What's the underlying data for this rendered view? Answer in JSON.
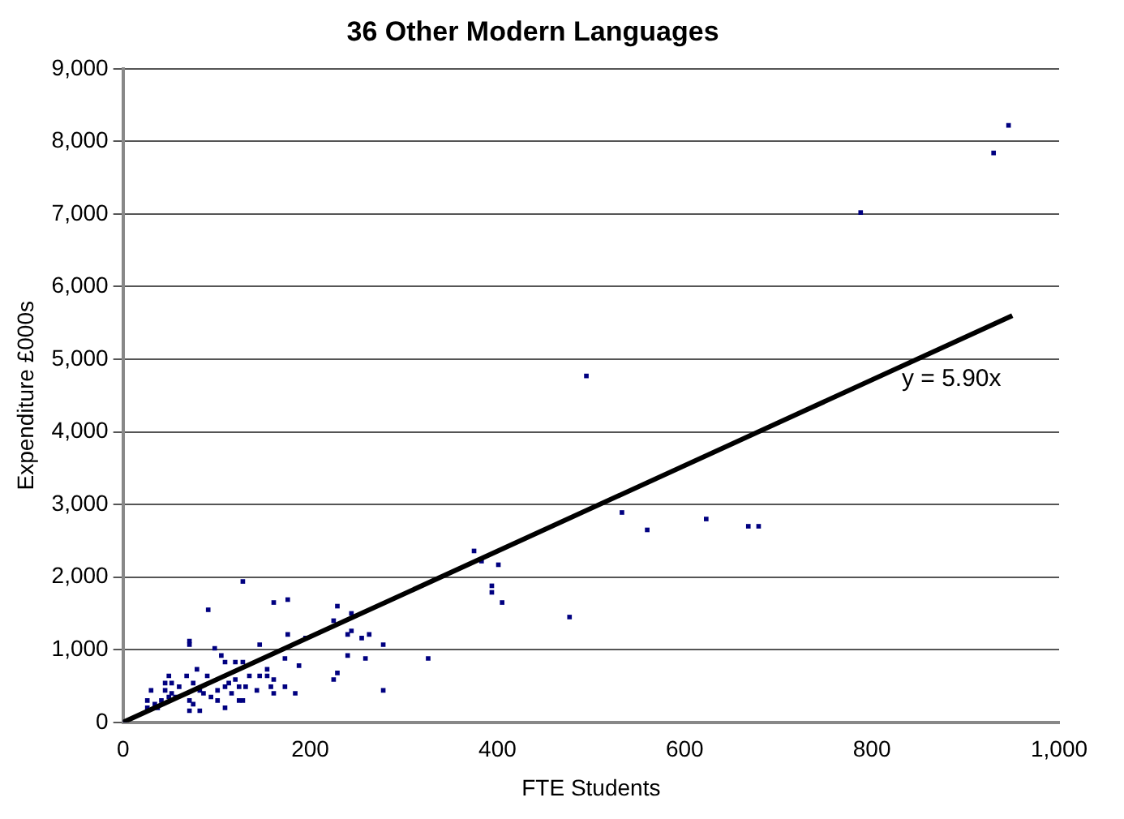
{
  "chart_data": {
    "type": "scatter",
    "title": "36 Other Modern Languages",
    "xlabel": "FTE Students",
    "ylabel": "Expenditure £000s",
    "xlim": [
      0,
      1000
    ],
    "xticks": [
      0,
      200,
      400,
      600,
      800,
      {
        "value": 1000,
        "label": "1,000"
      }
    ],
    "ylim": [
      0,
      9000
    ],
    "yticks": [
      0,
      {
        "value": 1000,
        "label": "1,000"
      },
      {
        "value": 2000,
        "label": "2,000"
      },
      {
        "value": 3000,
        "label": "3,000"
      },
      {
        "value": 4000,
        "label": "4,000"
      },
      {
        "value": 5000,
        "label": "5,000"
      },
      {
        "value": 6000,
        "label": "6,000"
      },
      {
        "value": 7000,
        "label": "7,000"
      },
      {
        "value": 8000,
        "label": "8,000"
      },
      {
        "value": 9000,
        "label": "9,000"
      }
    ],
    "grid": "y",
    "legend": false,
    "marker": "square",
    "annotations": [
      "y = 5.90x"
    ],
    "series": [
      {
        "color": "#000080",
        "x": [
          946,
          930,
          788,
          495,
          533,
          560,
          623,
          668,
          679,
          375,
          383,
          401,
          394,
          394,
          405,
          477,
          128,
          91,
          161,
          176,
          229,
          225,
          244,
          244,
          240,
          255,
          263,
          278,
          326,
          71,
          71,
          98,
          146,
          176,
          195,
          105,
          109,
          120,
          128,
          173,
          240,
          259,
          79,
          68,
          90,
          188,
          154,
          135,
          146,
          161,
          229,
          225,
          278,
          49,
          30,
          45,
          52,
          45,
          52,
          60,
          56,
          49,
          41,
          26,
          34,
          37,
          26,
          75,
          82,
          86,
          94,
          101,
          109,
          113,
          116,
          120,
          124,
          131,
          143,
          158,
          161,
          173,
          184,
          154,
          71,
          75,
          71,
          82,
          109,
          124,
          128,
          101,
          2
        ],
        "values": [
          8220,
          7840,
          7020,
          4770,
          2890,
          2650,
          2800,
          2700,
          2700,
          2360,
          2220,
          2170,
          1880,
          1790,
          1650,
          1450,
          1940,
          1550,
          1650,
          1690,
          1600,
          1400,
          1500,
          1260,
          1210,
          1160,
          1210,
          1070,
          880,
          1120,
          1070,
          1020,
          1070,
          1210,
          1160,
          920,
          830,
          830,
          830,
          880,
          920,
          880,
          730,
          640,
          640,
          780,
          730,
          640,
          640,
          590,
          680,
          590,
          440,
          640,
          440,
          540,
          540,
          440,
          400,
          490,
          350,
          350,
          300,
          300,
          250,
          200,
          200,
          540,
          440,
          400,
          350,
          440,
          490,
          540,
          400,
          590,
          490,
          490,
          440,
          490,
          400,
          490,
          400,
          640,
          300,
          250,
          160,
          160,
          200,
          300,
          300,
          300,
          0
        ]
      },
      {
        "type": "line",
        "color": "#000000",
        "x": [
          0,
          950
        ],
        "values": [
          0,
          5600
        ],
        "marker": "none"
      }
    ]
  }
}
